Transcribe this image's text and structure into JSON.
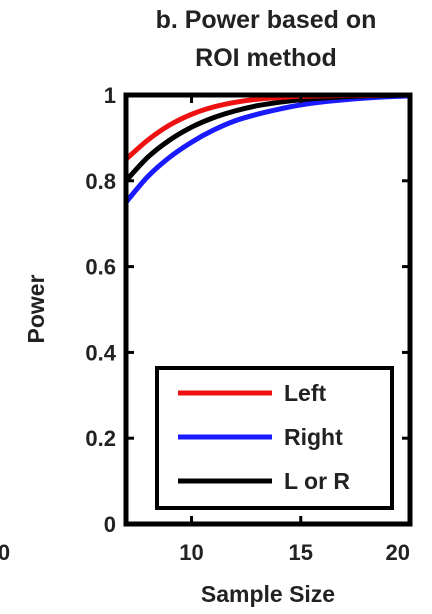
{
  "chart_data": {
    "type": "line",
    "title": [
      "b. Power based on",
      "ROI method"
    ],
    "xlabel": "Sample Size",
    "ylabel": "Power",
    "xlim": [
      7,
      20
    ],
    "ylim": [
      0,
      1
    ],
    "x_ticks": [
      {
        "value": 10,
        "label": "10"
      },
      {
        "value": 15,
        "label": "15"
      },
      {
        "value": 20,
        "label": "20"
      }
    ],
    "y_ticks": [
      {
        "value": 0,
        "label": "0"
      },
      {
        "value": 0.2,
        "label": "0.2"
      },
      {
        "value": 0.4,
        "label": "0.4"
      },
      {
        "value": 0.6,
        "label": "0.6"
      },
      {
        "value": 0.8,
        "label": "0.8"
      },
      {
        "value": 1,
        "label": "1"
      }
    ],
    "edge_labels": [
      {
        "label": "0",
        "note": "partial tick label from neighbouring panel"
      }
    ],
    "grid": false,
    "legend_position": "bottom-right",
    "series": [
      {
        "name": "Left",
        "color": "#ee1111",
        "x": [
          7,
          8,
          9,
          10,
          11,
          12,
          13,
          14,
          15,
          16,
          17,
          18,
          19,
          20
        ],
        "y": [
          0.85,
          0.895,
          0.93,
          0.955,
          0.972,
          0.983,
          0.99,
          0.994,
          0.997,
          0.998,
          0.999,
          0.999,
          1.0,
          1.0
        ]
      },
      {
        "name": "Right",
        "color": "#1a1aff",
        "x": [
          7,
          8,
          9,
          10,
          11,
          12,
          13,
          14,
          15,
          16,
          17,
          18,
          19,
          20
        ],
        "y": [
          0.75,
          0.81,
          0.855,
          0.89,
          0.918,
          0.94,
          0.955,
          0.967,
          0.977,
          0.984,
          0.989,
          0.993,
          0.996,
          0.998
        ]
      },
      {
        "name": "L or R",
        "color": "#000000",
        "x": [
          7,
          8,
          9,
          10,
          11,
          12,
          13,
          14,
          15,
          16,
          17,
          18,
          19,
          20
        ],
        "y": [
          0.8,
          0.855,
          0.895,
          0.925,
          0.947,
          0.963,
          0.975,
          0.983,
          0.989,
          0.993,
          0.996,
          0.998,
          0.999,
          1.0
        ]
      }
    ]
  }
}
